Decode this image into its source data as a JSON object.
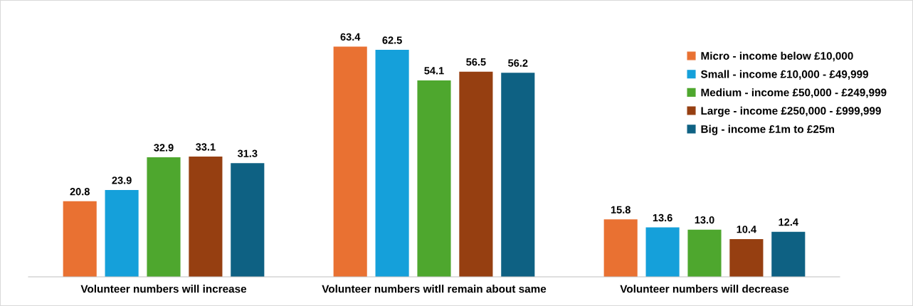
{
  "chart_data": {
    "type": "bar",
    "categories": [
      "Volunteer numbers will increase",
      "Volunteer numbers witll remain about same",
      "Volunteer numbers will decrease"
    ],
    "series": [
      {
        "name": "Micro - income below £10,000",
        "color": "#e97132",
        "values": [
          20.8,
          63.4,
          15.8
        ],
        "value_labels": [
          "20.8",
          "63.4",
          "15.8"
        ]
      },
      {
        "name": "Small - income £10,000 - £49,999",
        "color": "#15a0da",
        "values": [
          23.9,
          62.5,
          13.6
        ],
        "value_labels": [
          "23.9",
          "62.5",
          "13.6"
        ]
      },
      {
        "name": "Medium - income £50,000 - £249,999",
        "color": "#4ea72e",
        "values": [
          32.9,
          54.1,
          13.0
        ],
        "value_labels": [
          "32.9",
          "54.1",
          "13.0"
        ]
      },
      {
        "name": "Large - income £250,000 - £999,999",
        "color": "#963f11",
        "values": [
          33.1,
          56.5,
          10.4
        ],
        "value_labels": [
          "33.1",
          "56.5",
          "10.4"
        ]
      },
      {
        "name": "Big - income £1m to £25m",
        "color": "#0e6183",
        "values": [
          31.3,
          56.2,
          12.4
        ],
        "value_labels": [
          "31.3",
          "56.2",
          "12.4"
        ]
      }
    ],
    "legend": "top right"
  }
}
